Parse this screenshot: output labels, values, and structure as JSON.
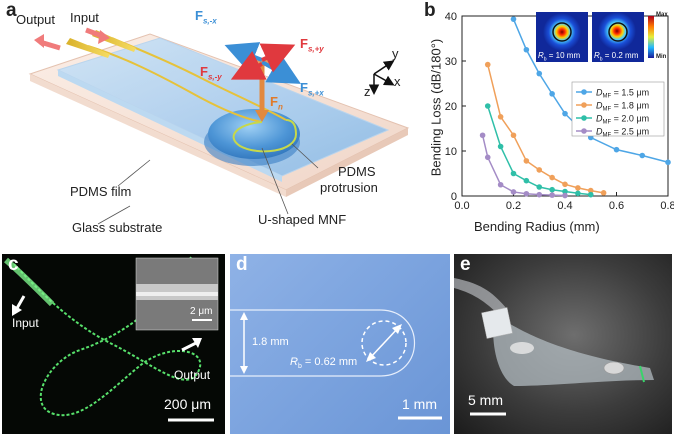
{
  "panel_a": {
    "letter": "a",
    "labels": {
      "output": "Output",
      "input": "Input",
      "pdms_film": "PDMS film",
      "glass_substrate": "Glass substrate",
      "pdms_protrusion_1": "PDMS",
      "pdms_protrusion_2": "protrusion",
      "u_shaped_mnf": "U-shaped MNF",
      "f_main": "F",
      "f_main_sub": "s,-x",
      "f_plus_y": "F",
      "f_plus_y_sub": "s,+y",
      "f_minus_y": "F",
      "f_minus_y_sub": "s,-y",
      "f_plus_x": "F",
      "f_plus_x_sub": "s,+x",
      "f_n": "F",
      "f_n_sub": "n",
      "axis_y": "y",
      "axis_x": "x",
      "axis_z": "z"
    },
    "colors": {
      "force_blue": "#3b8fd6",
      "force_red": "#e0393e",
      "force_orange": "#e07a2a"
    }
  },
  "panel_b": {
    "letter": "b",
    "inset_max": "Max",
    "inset_min": "Min",
    "inset_label_1": "R",
    "inset_label_1_sub": "b",
    "inset_label_1_val": " = 10 mm",
    "inset_label_2": "R",
    "inset_label_2_sub": "b",
    "inset_label_2_val": " = 0.2 mm"
  },
  "chart_data": {
    "type": "line",
    "title": "",
    "xlabel": "Bending Radius (mm)",
    "ylabel": "Bending Loss (dB/180°)",
    "xlim": [
      0.0,
      0.8
    ],
    "ylim": [
      0,
      40
    ],
    "xticks": [
      "0.0",
      "0.2",
      "0.4",
      "0.6",
      "0.8"
    ],
    "yticks": [
      "0",
      "10",
      "20",
      "30",
      "40"
    ],
    "legend_position": "middle-right",
    "series": [
      {
        "name": "D",
        "name_sub": "MF",
        "name_rest": " = 1.5 μm",
        "color": "#4ea6e6",
        "x": [
          0.2,
          0.25,
          0.3,
          0.35,
          0.4,
          0.45,
          0.5,
          0.6,
          0.7,
          0.8
        ],
        "y": [
          39.3,
          32.5,
          27.2,
          22.7,
          18.3,
          15.5,
          13.0,
          10.3,
          9.0,
          7.5
        ]
      },
      {
        "name": "D",
        "name_sub": "MF",
        "name_rest": " = 1.8 μm",
        "color": "#f0a05a",
        "x": [
          0.1,
          0.15,
          0.2,
          0.25,
          0.3,
          0.35,
          0.4,
          0.45,
          0.5,
          0.55
        ],
        "y": [
          29.2,
          17.6,
          13.5,
          7.8,
          5.8,
          4.1,
          2.6,
          1.8,
          1.2,
          0.7
        ]
      },
      {
        "name": "D",
        "name_sub": "MF",
        "name_rest": " = 2.0 μm",
        "color": "#2fbfa8",
        "x": [
          0.1,
          0.15,
          0.2,
          0.25,
          0.3,
          0.35,
          0.4,
          0.45,
          0.5
        ],
        "y": [
          20.0,
          11.0,
          5.0,
          3.4,
          2.0,
          1.4,
          1.0,
          0.6,
          0.3
        ]
      },
      {
        "name": "D",
        "name_sub": "MF",
        "name_rest": " = 2.5 μm",
        "color": "#a48cc6",
        "x": [
          0.08,
          0.1,
          0.15,
          0.2,
          0.25,
          0.3,
          0.35,
          0.4
        ],
        "y": [
          13.5,
          8.6,
          2.5,
          0.9,
          0.5,
          0.3,
          0.2,
          0.1
        ]
      }
    ]
  },
  "panel_c": {
    "letter": "c",
    "input": "Input",
    "output": "Output",
    "scale_main": "200 μm",
    "scale_inset": "2 μm"
  },
  "panel_d": {
    "letter": "d",
    "width_label": "1.8 mm",
    "radius_label": "R",
    "radius_sub": "b",
    "radius_val": " = 0.62 mm",
    "scale": "1 mm"
  },
  "panel_e": {
    "letter": "e",
    "scale": "5 mm"
  }
}
